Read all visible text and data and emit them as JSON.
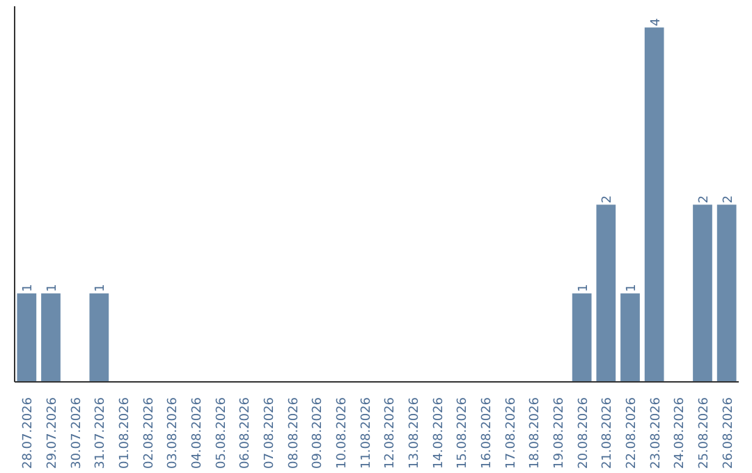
{
  "chart_data": {
    "type": "bar",
    "categories": [
      "28.07.2026",
      "29.07.2026",
      "30.07.2026",
      "31.07.2026",
      "01.08.2026",
      "02.08.2026",
      "03.08.2026",
      "04.08.2026",
      "05.08.2026",
      "06.08.2026",
      "07.08.2026",
      "08.08.2026",
      "09.08.2026",
      "10.08.2026",
      "11.08.2026",
      "12.08.2026",
      "13.08.2026",
      "14.08.2026",
      "15.08.2026",
      "16.08.2026",
      "17.08.2026",
      "18.08.2026",
      "19.08.2026",
      "20.08.2026",
      "21.08.2026",
      "22.08.2026",
      "23.08.2026",
      "24.08.2026",
      "25.08.2026",
      "26.08.2026"
    ],
    "values": [
      1,
      1,
      0,
      1,
      0,
      0,
      0,
      0,
      0,
      0,
      0,
      0,
      0,
      0,
      0,
      0,
      0,
      0,
      0,
      0,
      0,
      0,
      0,
      1,
      2,
      1,
      4,
      0,
      2,
      2
    ],
    "value_labels": [
      "1",
      "1",
      null,
      "1",
      null,
      null,
      null,
      null,
      null,
      null,
      null,
      null,
      null,
      null,
      null,
      null,
      null,
      null,
      null,
      null,
      null,
      null,
      null,
      "1",
      "2",
      "1",
      "4",
      null,
      "2",
      "2"
    ],
    "color": "#6b8bab",
    "grid": false,
    "tick_labels": "x"
  }
}
